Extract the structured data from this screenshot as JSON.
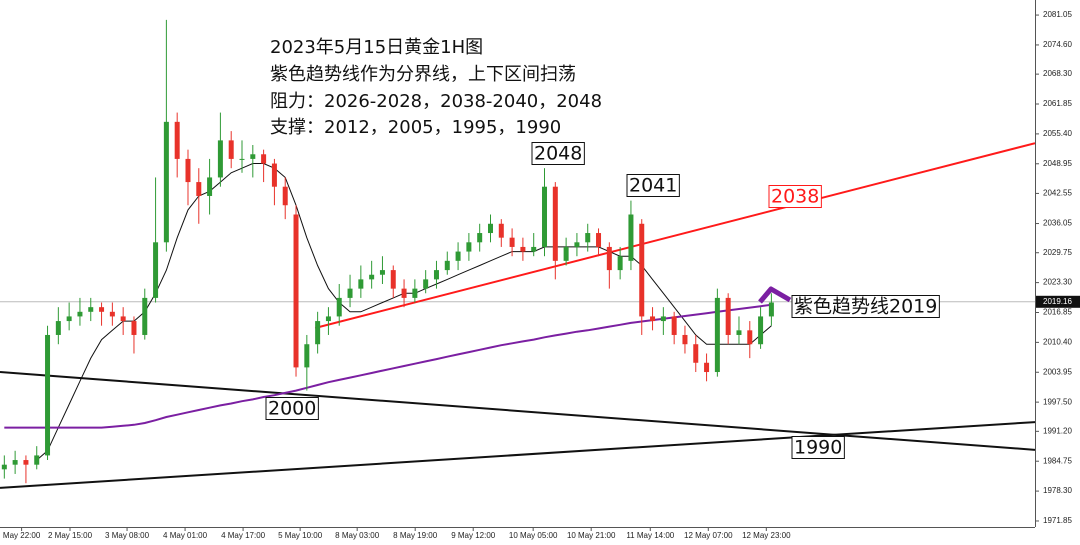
{
  "chart_data": {
    "type": "candlestick",
    "text_lines": [
      "2023年5月15日黄金1H图",
      "紫色趋势线作为分界线，上下区间扫荡",
      "阻力：2026-2028，2038-2040，2048",
      "支撑：2012，2005，1995，1990"
    ],
    "x": [
      0,
      1,
      2,
      3,
      4,
      5,
      6,
      7,
      8,
      9,
      10,
      11,
      12,
      13,
      14,
      15,
      16,
      17,
      18,
      19,
      20,
      21,
      22,
      23,
      24,
      25,
      26,
      27,
      28,
      29,
      30,
      31,
      32,
      33,
      34,
      35,
      36,
      37,
      38,
      39,
      40,
      41,
      42,
      43,
      44,
      45,
      46,
      47,
      48,
      49,
      50,
      51,
      52,
      53,
      54,
      55,
      56,
      57,
      58,
      59,
      60,
      61,
      62,
      63,
      64,
      65,
      66,
      67,
      68,
      69,
      70,
      71
    ],
    "open": [
      1983,
      1984,
      1985,
      1984,
      1986,
      2012,
      2015,
      2016,
      2017,
      2018,
      2017,
      2016,
      2015,
      2012,
      2020,
      2032,
      2058,
      2050,
      2045,
      2042,
      2046,
      2054,
      2050,
      2050,
      2051,
      2049,
      2044,
      2038,
      2005,
      2010,
      2015,
      2016,
      2020,
      2022,
      2024,
      2025,
      2026,
      2022,
      2020,
      2022,
      2024,
      2026,
      2028,
      2030,
      2032,
      2034,
      2036,
      2033,
      2031,
      2030,
      2031,
      2044,
      2028,
      2031,
      2032,
      2034,
      2031,
      2026,
      2028,
      2036,
      2016,
      2015,
      2016,
      2012,
      2010,
      2006,
      2004,
      2020,
      2012,
      2013,
      2010,
      2016
    ],
    "high": [
      1986,
      1987,
      1986,
      1988,
      2014,
      2018,
      2019,
      2020,
      2020,
      2019,
      2019,
      2018,
      2016,
      2022,
      2046,
      2080,
      2060,
      2052,
      2048,
      2050,
      2060,
      2056,
      2054,
      2053,
      2052,
      2050,
      2046,
      2040,
      2012,
      2017,
      2018,
      2023,
      2025,
      2027,
      2028,
      2029,
      2027,
      2024,
      2024,
      2026,
      2028,
      2030,
      2032,
      2034,
      2036,
      2038,
      2037,
      2035,
      2033,
      2034,
      2048,
      2045,
      2033,
      2034,
      2036,
      2035,
      2032,
      2031,
      2041,
      2037,
      2018,
      2018,
      2017,
      2014,
      2012,
      2008,
      2022,
      2021,
      2016,
      2015,
      2018,
      2021
    ],
    "low": [
      1981,
      1982,
      1980,
      1983,
      1985,
      2010,
      2013,
      2014,
      2015,
      2014,
      2014,
      2012,
      2008,
      2011,
      2019,
      2030,
      2046,
      2040,
      2036,
      2038,
      2044,
      2048,
      2047,
      2046,
      2045,
      2040,
      2037,
      2003,
      2000,
      2008,
      2012,
      2014,
      2018,
      2020,
      2022,
      2023,
      2020,
      2018,
      2019,
      2021,
      2022,
      2025,
      2026,
      2028,
      2030,
      2032,
      2031,
      2029,
      2028,
      2029,
      2029,
      2024,
      2027,
      2029,
      2030,
      2029,
      2022,
      2024,
      2026,
      2012,
      2013,
      2012,
      2010,
      2008,
      2004,
      2002,
      2003,
      2010,
      2010,
      2007,
      2009,
      2014
    ],
    "close": [
      1984,
      1985,
      1984,
      1986,
      2012,
      2015,
      2016,
      2017,
      2018,
      2017,
      2016,
      2015,
      2012,
      2020,
      2032,
      2058,
      2050,
      2045,
      2042,
      2046,
      2054,
      2050,
      2050,
      2051,
      2049,
      2044,
      2040,
      2005,
      2010,
      2015,
      2016,
      2020,
      2022,
      2024,
      2025,
      2026,
      2022,
      2020,
      2022,
      2024,
      2026,
      2028,
      2030,
      2032,
      2034,
      2036,
      2033,
      2031,
      2030,
      2031,
      2044,
      2028,
      2031,
      2032,
      2034,
      2031,
      2026,
      2029,
      2038,
      2016,
      2015,
      2016,
      2012,
      2010,
      2006,
      2004,
      2020,
      2012,
      2013,
      2010,
      2016,
      2019
    ],
    "up_color": "#2f9a35",
    "down_color": "#e8322a",
    "moving_averages": [
      {
        "color": "#111111",
        "values": [
          null,
          null,
          null,
          1985,
          1987,
          1992,
          1997,
          2002,
          2007,
          2011,
          2013,
          2015,
          2015,
          2017,
          2021,
          2026,
          2033,
          2039,
          2042,
          2043,
          2045,
          2047,
          2048,
          2049,
          2049,
          2048,
          2046,
          2040,
          2033,
          2027,
          2022,
          2019,
          2017,
          2017,
          2018,
          2019,
          2020,
          2021,
          2021,
          2022,
          2023,
          2024,
          2025,
          2026,
          2027,
          2028,
          2029,
          2030,
          2030,
          2030,
          2031,
          2031,
          2031,
          2031,
          2031,
          2031,
          2030,
          2029,
          2029,
          2027,
          2024,
          2021,
          2018,
          2015,
          2012,
          2010,
          2010,
          2010,
          2010,
          2010,
          2012,
          2014
        ]
      },
      {
        "color": "#7b1fa2",
        "values": [
          1992,
          1992,
          1992,
          1992,
          1992,
          1992,
          1992,
          1992,
          1992,
          1992,
          1992.2,
          1992.4,
          1992.6,
          1993,
          1993.6,
          1994.3,
          1994.8,
          1995.3,
          1995.8,
          1996.3,
          1996.8,
          1997.2,
          1997.7,
          1998.1,
          1998.6,
          1999,
          1999.5,
          2000,
          2000.6,
          2001.2,
          2001.8,
          2002.3,
          2002.8,
          2003.3,
          2003.8,
          2004.3,
          2004.8,
          2005.3,
          2005.8,
          2006.3,
          2006.8,
          2007.3,
          2007.8,
          2008.3,
          2008.8,
          2009.3,
          2009.8,
          2010.2,
          2010.6,
          2011,
          2011.5,
          2011.9,
          2012.3,
          2012.7,
          2013,
          2013.4,
          2013.8,
          2014.2,
          2014.6,
          2014.9,
          2015.2,
          2015.5,
          2015.8,
          2016.1,
          2016.4,
          2016.7,
          2017,
          2017.3,
          2017.6,
          2017.9,
          2018.2,
          2018.5
        ]
      }
    ],
    "trendlines": [
      {
        "color": "#ff1a1a",
        "points": [
          [
            28.77,
            2013.5
          ],
          [
            95.4,
            2053.4
          ]
        ]
      },
      {
        "color": "#111111",
        "points": [
          [
            -0.4,
            2004.0
          ],
          [
            95.4,
            1987.2
          ]
        ]
      },
      {
        "color": "#111111",
        "points": [
          [
            -0.4,
            1979.0
          ],
          [
            95.4,
            1993.2
          ]
        ]
      }
    ],
    "annotations": [
      {
        "text": "2048",
        "color": "#111111"
      },
      {
        "text": "2041",
        "color": "#111111"
      },
      {
        "text": "2038",
        "color": "#ff1a1a"
      },
      {
        "text": "紫色趋势线2019",
        "color": "#111111"
      },
      {
        "text": "2000",
        "color": "#111111"
      },
      {
        "text": "1990",
        "color": "#111111"
      }
    ],
    "last_price": 2019.16,
    "xlim": [
      -0.4,
      95.4
    ],
    "ylim": [
      1970.55,
      2084.3
    ],
    "xticks": [
      {
        "value": 1.6,
        "label": "May 22:00"
      },
      {
        "value": 6.08,
        "label": "2 May 15:00"
      },
      {
        "value": 11.36,
        "label": "3 May 08:00"
      },
      {
        "value": 16.73,
        "label": "4 May 01:00"
      },
      {
        "value": 22.1,
        "label": "4 May 17:00"
      },
      {
        "value": 27.38,
        "label": "5 May 10:00"
      },
      {
        "value": 32.66,
        "label": "8 May 03:00"
      },
      {
        "value": 38.03,
        "label": "8 May 19:00"
      },
      {
        "value": 43.4,
        "label": "9 May 12:00"
      },
      {
        "value": 48.95,
        "label": "10 May 05:00"
      },
      {
        "value": 54.32,
        "label": "10 May 21:00"
      },
      {
        "value": 59.79,
        "label": "11 May 14:00"
      },
      {
        "value": 65.16,
        "label": "12 May 07:00"
      },
      {
        "value": 70.53,
        "label": "12 May 23:00"
      }
    ],
    "yticks": [
      2081.05,
      {
        "value": 2074.6,
        "label": "2074.60"
      },
      {
        "value": 2068.3,
        "label": "2068.30"
      },
      2061.85,
      {
        "value": 2055.4,
        "label": "2055.40"
      },
      2048.95,
      2042.55,
      2036.05,
      2029.75,
      {
        "value": 2023.3,
        "label": "2023.30"
      },
      2016.85,
      {
        "value": 2010.4,
        "label": "2010.40"
      },
      2003.95,
      {
        "value": 1997.5,
        "label": "1997.50"
      },
      {
        "value": 1991.2,
        "label": "1991.20"
      },
      1984.75,
      {
        "value": 1978.3,
        "label": "1978.30"
      },
      1971.85
    ]
  }
}
